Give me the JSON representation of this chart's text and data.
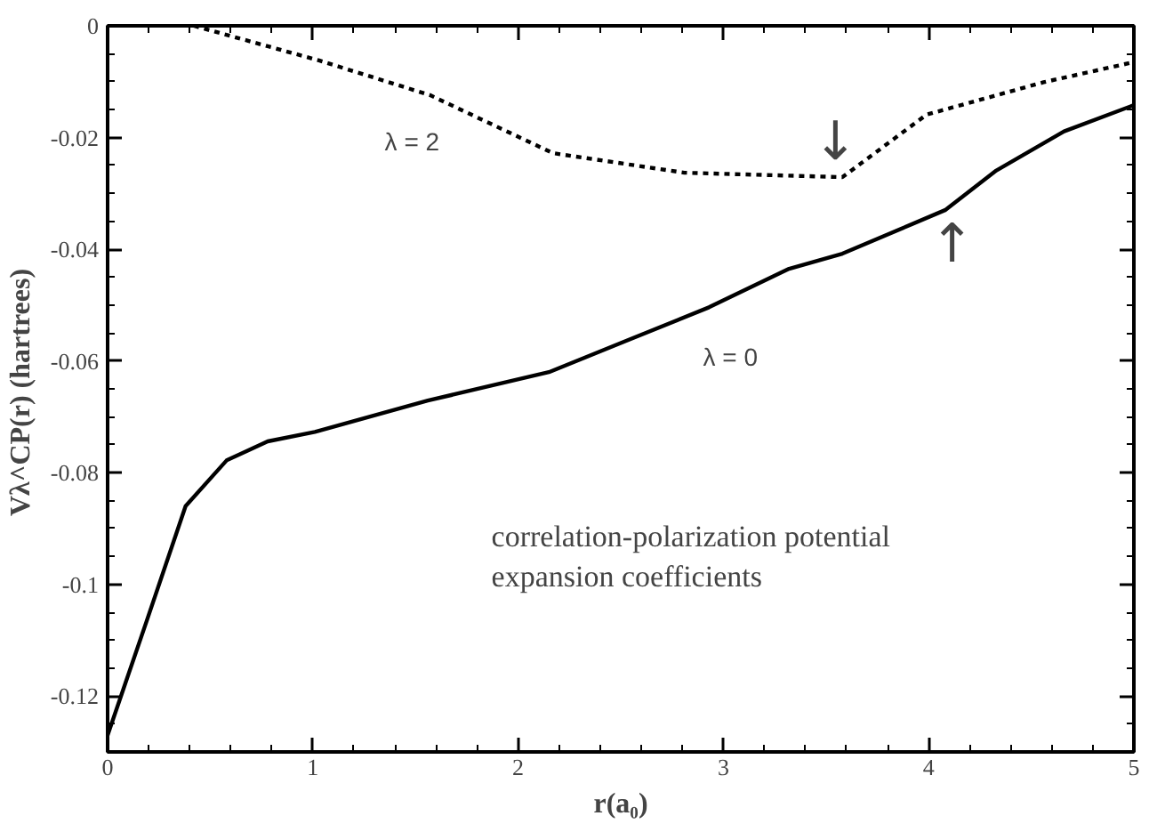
{
  "chart_data": {
    "type": "line",
    "xlabel": "r(a₀)",
    "ylabel": "Vλ^CP(r)  (hartrees)",
    "xlim": [
      0,
      5
    ],
    "ylim": [
      -0.13,
      0
    ],
    "xticks": [
      0,
      1,
      2,
      3,
      4,
      5
    ],
    "yticks": [
      0,
      -0.02,
      -0.04,
      -0.06,
      -0.08,
      {
        "value": -0.1,
        "label": "-0.1"
      },
      -0.12
    ],
    "grid": false,
    "marker": "none",
    "series": [
      {
        "name": "λ = 0",
        "color": "#000000",
        "line_style": "solid",
        "x": [
          0,
          0.19,
          0.38,
          0.58,
          0.78,
          1.01,
          1.56,
          2.15,
          2.54,
          2.93,
          3.32,
          3.58,
          4.08,
          4.33,
          4.66,
          5
        ],
        "values": [
          -0.127,
          -0.1066,
          -0.086,
          -0.0778,
          -0.0744,
          -0.0727,
          -0.0671,
          -0.062,
          -0.0562,
          -0.0504,
          -0.0435,
          -0.0408,
          -0.033,
          -0.0259,
          -0.0189,
          -0.0142
        ]
      },
      {
        "name": "λ = 2",
        "color": "#000000",
        "line_style": "dotted",
        "x": [
          0.42,
          1.03,
          1.57,
          2.17,
          2.81,
          3.58,
          3.99,
          4.56,
          5
        ],
        "values": [
          0,
          -0.0062,
          -0.0124,
          -0.0228,
          -0.0263,
          -0.0271,
          -0.0159,
          -0.0101,
          -0.0065
        ]
      }
    ],
    "annotations": [
      "↓",
      "↑",
      "correlation-polarization potential\nexpansion coefficients"
    ]
  }
}
